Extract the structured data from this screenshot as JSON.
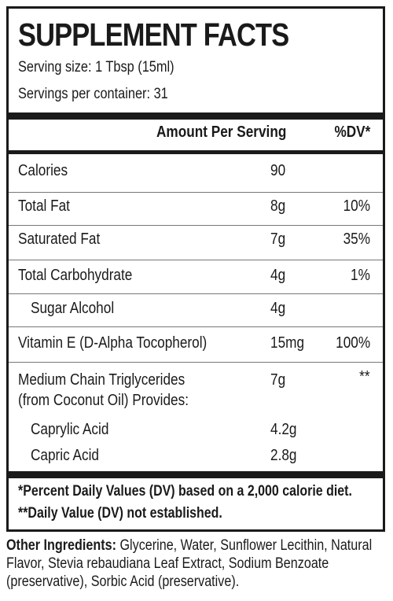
{
  "title": "SUPPLEMENT FACTS",
  "serving_size": "Serving size: 1 Tbsp (15ml)",
  "servings_per_container": "Servings per container: 31",
  "header": {
    "amount": "Amount Per Serving",
    "dv": "%DV*"
  },
  "rows": [
    {
      "name": "Calories",
      "amount": "90",
      "dv": ""
    },
    {
      "name": "Total Fat",
      "amount": "8g",
      "dv": "10%"
    },
    {
      "name": "Saturated Fat",
      "amount": "7g",
      "dv": "35%"
    },
    {
      "name": "Total Carbohydrate",
      "amount": "4g",
      "dv": "1%"
    },
    {
      "name": "Sugar Alcohol",
      "amount": "4g",
      "dv": ""
    },
    {
      "name": "Vitamin E (D-Alpha Tocopherol)",
      "amount": "15mg",
      "dv": "100%"
    },
    {
      "name": "Medium Chain Triglycerides",
      "name2": "(from Coconut Oil) Provides:",
      "amount": "7g",
      "dv": "**"
    },
    {
      "name": "Caprylic Acid",
      "amount": "4.2g",
      "dv": ""
    },
    {
      "name": "Capric Acid",
      "amount": "2.8g",
      "dv": ""
    }
  ],
  "footnotes": [
    "*Percent Daily Values (DV) based on a 2,000 calorie diet.",
    "**Daily Value (DV) not established."
  ],
  "other_ingredients": {
    "label": "Other Ingredients:",
    "text": " Glycerine, Water, Sunflower Lecithin, Natural Flavor, Stevia rebaudiana Leaf Extract, Sodium Benzoate (preservative), Sorbic Acid (preservative)."
  }
}
